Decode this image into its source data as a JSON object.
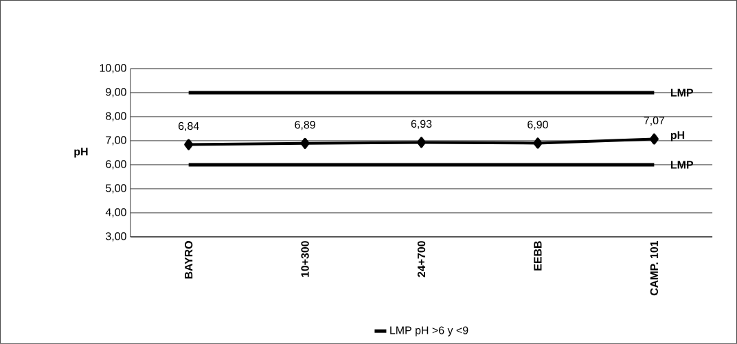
{
  "chart_data": {
    "type": "line",
    "ylabel": "pH",
    "categories": [
      "BAYRO",
      "10+300",
      "24+700",
      "EEBB",
      "CAMP. 101"
    ],
    "series": [
      {
        "name": "LMP pH >6 y <9",
        "color": "#000000",
        "marker": "none",
        "values": [
          9,
          9,
          9,
          9,
          9
        ]
      },
      {
        "color": "#000000",
        "marker": "none",
        "values": [
          6,
          6,
          6,
          6,
          6
        ]
      },
      {
        "name": "pH",
        "color": "#000000",
        "marker": "diamond",
        "values": [
          6.84,
          6.89,
          6.93,
          6.9,
          7.07
        ],
        "value_labels": [
          "6,84",
          "6,89",
          "6,93",
          "6,90",
          "7,07"
        ]
      }
    ],
    "annotations": [
      {
        "text": "LMP",
        "x": "CAMP. 101",
        "y": 9
      },
      {
        "text": "LMP",
        "x": "CAMP. 101",
        "y": 6
      }
    ],
    "ylim": [
      3,
      10
    ],
    "yticks": [
      {
        "value": 3,
        "label": "3,00"
      },
      {
        "value": 4,
        "label": "4,00"
      },
      {
        "value": 5,
        "label": "5,00"
      },
      {
        "value": 6,
        "label": "6,00"
      },
      {
        "value": 7,
        "label": "7,00"
      },
      {
        "value": 8,
        "label": "8,00"
      },
      {
        "value": 9,
        "label": "9,00"
      },
      {
        "value": 10,
        "label": "10,00"
      }
    ],
    "grid": "y",
    "legend": "bottom",
    "line_style": "solid"
  }
}
